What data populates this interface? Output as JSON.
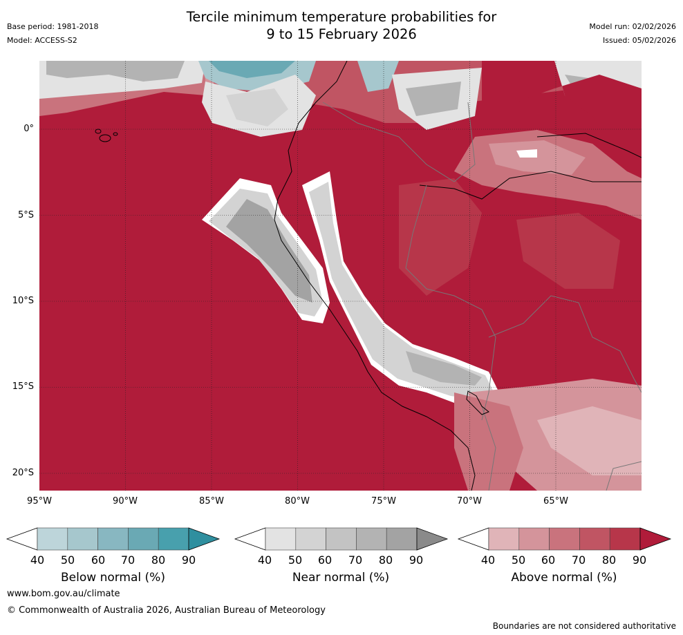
{
  "header": {
    "title_line1": "Tercile minimum temperature probabilities for",
    "title_line2": "9 to 15 February 2026",
    "base_period": "Base period: 1981-2018",
    "model": "Model: ACCESS-S2",
    "model_run": "Model run: 02/02/2026",
    "issued": "Issued: 05/02/2026"
  },
  "map": {
    "region": "Peru / western South America",
    "lat_ticks": [
      "0°",
      "5°S",
      "10°S",
      "15°S",
      "20°S"
    ],
    "lon_ticks": [
      "95°W",
      "90°W",
      "85°W",
      "80°W",
      "75°W",
      "70°W",
      "65°W"
    ]
  },
  "colorbars": [
    {
      "name": "below",
      "label": "Below normal (%)",
      "ticks": [
        "40",
        "50",
        "60",
        "70",
        "80",
        "90"
      ],
      "colors": [
        "#ffffff",
        "#bdd5da",
        "#a6c7cd",
        "#88b7c1",
        "#6aa9b4",
        "#48a0ad",
        "#2f8f9f"
      ]
    },
    {
      "name": "near",
      "label": "Near normal (%)",
      "ticks": [
        "40",
        "50",
        "60",
        "70",
        "80",
        "90"
      ],
      "colors": [
        "#ffffff",
        "#e3e3e3",
        "#d3d3d3",
        "#c3c3c3",
        "#b3b3b3",
        "#a3a3a3",
        "#8a8a8a"
      ]
    },
    {
      "name": "above",
      "label": "Above normal (%)",
      "ticks": [
        "40",
        "50",
        "60",
        "70",
        "80",
        "90"
      ],
      "colors": [
        "#ffffff",
        "#e0b4b8",
        "#d4949b",
        "#c9737d",
        "#c05563",
        "#b7364a",
        "#b01c3a"
      ]
    }
  ],
  "footer": {
    "url": "www.bom.gov.au/climate",
    "copyright": "© Commonwealth of Australia 2026, Australian Bureau of Meteorology",
    "disclaimer": "Boundaries are not considered authoritative"
  }
}
